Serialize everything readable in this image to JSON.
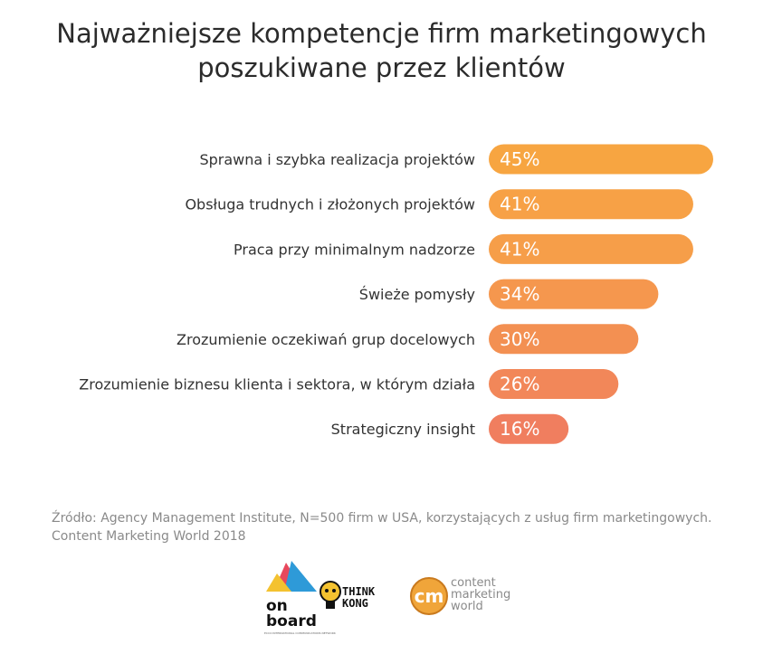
{
  "title": {
    "line1": "Najważniejsze kompetencje firm marketingowych",
    "line2": "poszukiwane przez klientów"
  },
  "chart_data": {
    "type": "bar",
    "orientation": "horizontal",
    "categories": [
      "Sprawna i szybka realizacja projektów",
      "Obsługa trudnych i złożonych projektów",
      "Praca przy minimalnym nadzorze",
      "Świeże pomysły",
      "Zrozumienie oczekiwań grup docelowych",
      "Zrozumienie biznesu klienta i sektora, w którym działa",
      "Strategiczny insight"
    ],
    "values": [
      45,
      41,
      41,
      34,
      30,
      26,
      16
    ],
    "labels": [
      "45%",
      "41%",
      "41%",
      "34%",
      "30%",
      "26%",
      "16%"
    ],
    "xlim": [
      0,
      45
    ],
    "grid": false,
    "legend": "none",
    "colors": [
      "#F7A541",
      "#F7A146",
      "#F69E49",
      "#F5974E",
      "#F39052",
      "#F28759",
      "#F07E5F"
    ]
  },
  "source": {
    "line1": "Źródło: Agency Management Institute, N=500 firm w USA, korzystających z usług firm marketingowych.",
    "line2": "Content Marketing World 2018"
  },
  "logos": {
    "onboard": {
      "line1": "on",
      "line2": "board",
      "tagline": "ECCO INTERNATIONAL COMMUNICATIONS NETWORK"
    },
    "thinkkong": {
      "line1": "THINK",
      "line2": "KONG"
    },
    "cmw": {
      "line1": "content",
      "line2": "marketing",
      "line3": "world",
      "badge": "cm"
    }
  }
}
